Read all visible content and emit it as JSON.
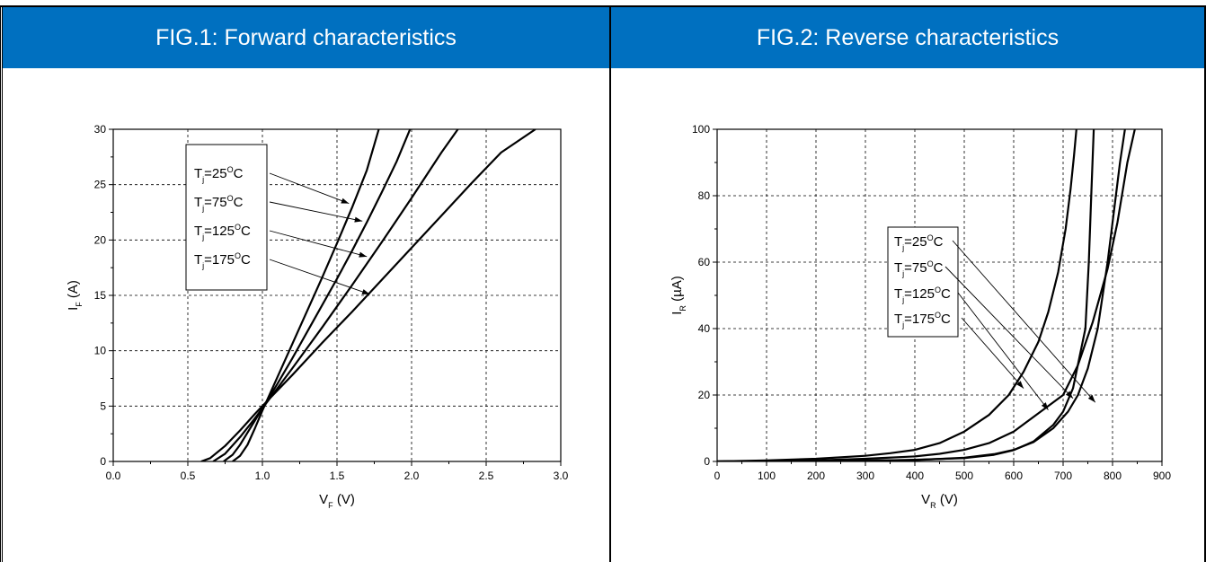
{
  "panels": [
    {
      "header": "FIG.1: Forward characteristics"
    },
    {
      "header": "FIG.2: Reverse characteristics"
    }
  ],
  "chart_data": [
    {
      "type": "line",
      "title": "FIG.1: Forward characteristics",
      "xlabel": {
        "main": "V",
        "sub": "F",
        "unit": "(V)"
      },
      "ylabel": {
        "main": "I",
        "sub": "F",
        "unit": "(A)"
      },
      "xlim": [
        0,
        3.0
      ],
      "ylim": [
        0,
        30
      ],
      "x_ticks": [
        "0.0",
        "0.5",
        "1.0",
        "1.5",
        "2.0",
        "2.5",
        "3.0"
      ],
      "y_ticks": [
        "0",
        "5",
        "10",
        "15",
        "20",
        "25",
        "30"
      ],
      "grid": true,
      "legend_position": "top-left",
      "series": [
        {
          "name": {
            "t": "T",
            "sub": "j",
            "val": "=25",
            "sup": "O",
            "unit": "C"
          },
          "x": [
            0.8,
            0.85,
            0.9,
            0.95,
            1.0,
            1.05,
            1.1,
            1.2,
            1.3,
            1.4,
            1.5,
            1.6,
            1.7,
            1.78
          ],
          "y": [
            0,
            0.5,
            1.5,
            3.0,
            4.6,
            6.1,
            7.6,
            10.6,
            13.6,
            16.6,
            19.7,
            22.9,
            26.3,
            30.0
          ]
        },
        {
          "name": {
            "t": "T",
            "sub": "j",
            "val": "=75",
            "sup": "O",
            "unit": "C"
          },
          "x": [
            0.74,
            0.8,
            0.85,
            0.9,
            0.95,
            1.0,
            1.1,
            1.2,
            1.3,
            1.4,
            1.5,
            1.6,
            1.7,
            1.8,
            1.9,
            1.99
          ],
          "y": [
            0,
            0.6,
            1.5,
            2.6,
            3.7,
            4.8,
            7.0,
            9.3,
            11.7,
            14.1,
            16.5,
            19.0,
            21.6,
            24.3,
            27.1,
            30.0
          ]
        },
        {
          "name": {
            "t": "T",
            "sub": "j",
            "val": "=125",
            "sup": "O",
            "unit": "C"
          },
          "x": [
            0.67,
            0.75,
            0.85,
            0.95,
            1.0,
            1.1,
            1.2,
            1.4,
            1.6,
            1.8,
            2.0,
            2.2,
            2.31
          ],
          "y": [
            0,
            0.7,
            2.2,
            3.9,
            4.8,
            6.6,
            8.4,
            12.1,
            15.9,
            19.8,
            23.8,
            27.9,
            30.0
          ]
        },
        {
          "name": {
            "t": "T",
            "sub": "j",
            "val": "=175",
            "sup": "O",
            "unit": "C"
          },
          "x": [
            0.59,
            0.65,
            0.75,
            0.85,
            0.95,
            1.0,
            1.2,
            1.4,
            1.6,
            1.8,
            2.0,
            2.2,
            2.4,
            2.6,
            2.83
          ],
          "y": [
            0,
            0.3,
            1.4,
            2.8,
            4.3,
            5.0,
            7.8,
            10.7,
            13.5,
            16.4,
            19.3,
            22.2,
            25.1,
            27.9,
            30.0
          ]
        }
      ]
    },
    {
      "type": "line",
      "title": "FIG.2: Reverse characteristics",
      "xlabel": {
        "main": "V",
        "sub": "R",
        "unit": "(V)"
      },
      "ylabel": {
        "main": "I",
        "sub": "R",
        "unit": "(µA)"
      },
      "xlim": [
        0,
        900
      ],
      "ylim": [
        0,
        100
      ],
      "x_ticks": [
        "0",
        "100",
        "200",
        "300",
        "400",
        "500",
        "600",
        "700",
        "800",
        "900"
      ],
      "y_ticks": [
        "0",
        "20",
        "40",
        "60",
        "80",
        "100"
      ],
      "grid": true,
      "legend_position": "center",
      "series": [
        {
          "name": {
            "t": "T",
            "sub": "j",
            "val": "=25",
            "sup": "O",
            "unit": "C"
          },
          "x": [
            0,
            300,
            400,
            500,
            560,
            600,
            640,
            680,
            700,
            720,
            745,
            752,
            757,
            762
          ],
          "y": [
            0,
            0.2,
            0.5,
            1.0,
            2.0,
            3.4,
            6.0,
            11.0,
            15.0,
            22.0,
            40.0,
            60.0,
            80.0,
            100.0
          ]
        },
        {
          "name": {
            "t": "T",
            "sub": "j",
            "val": "=75",
            "sup": "O",
            "unit": "C"
          },
          "x": [
            0,
            400,
            500,
            560,
            600,
            640,
            680,
            710,
            730,
            750,
            770,
            790,
            805,
            815,
            825
          ],
          "y": [
            0,
            0.4,
            1.1,
            2.2,
            3.5,
            5.8,
            10.0,
            15.0,
            20.0,
            28.0,
            40.0,
            60.0,
            78.0,
            90.0,
            100.0
          ]
        },
        {
          "name": {
            "t": "T",
            "sub": "j",
            "val": "=125",
            "sup": "O",
            "unit": "C"
          },
          "x": [
            0,
            200,
            300,
            400,
            450,
            500,
            550,
            600,
            650,
            700,
            730,
            760,
            790,
            810,
            830,
            845
          ],
          "y": [
            0,
            0.3,
            0.8,
            1.5,
            2.3,
            3.5,
            5.5,
            9.0,
            14.5,
            20.0,
            29.0,
            42.0,
            58.0,
            72.0,
            90.0,
            100.0
          ]
        },
        {
          "name": {
            "t": "T",
            "sub": "j",
            "val": "=175",
            "sup": "O",
            "unit": "C"
          },
          "x": [
            0,
            100,
            200,
            300,
            350,
            400,
            450,
            500,
            550,
            590,
            620,
            650,
            670,
            690,
            705,
            715,
            722,
            727
          ],
          "y": [
            0,
            0.3,
            0.8,
            1.7,
            2.5,
            3.5,
            5.5,
            9.0,
            14.0,
            20.0,
            27.0,
            36.0,
            45.0,
            57.0,
            70.0,
            82.0,
            92.0,
            100.0
          ]
        }
      ]
    }
  ]
}
